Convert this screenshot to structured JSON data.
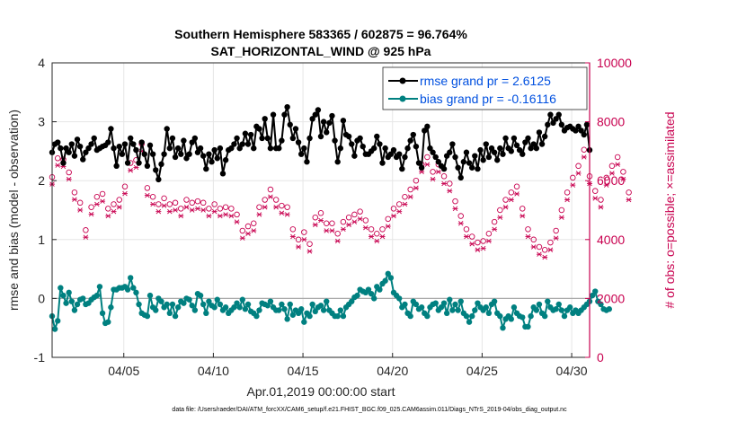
{
  "chart_data": {
    "type": "line",
    "title": "Southern Hemisphere 583365 / 602875 = 96.764%",
    "subtitle": "SAT_HORIZONTAL_WIND @ 925 hPa",
    "xlabel": "Apr.01,2019 00:00:00 start",
    "ylabel_left": "rmse and bias (model - observation)",
    "ylabel_right": "# of obs: o=possible; ×=assimilated",
    "x_ticks": [
      "04/05",
      "04/10",
      "04/15",
      "04/20",
      "04/25",
      "04/30"
    ],
    "x_tick_days": [
      5,
      10,
      15,
      20,
      25,
      30
    ],
    "xlim_days": [
      1,
      31
    ],
    "ylim_left": [
      -1,
      4
    ],
    "y_ticks_left": [
      "-1",
      "0",
      "1",
      "2",
      "3",
      "4"
    ],
    "ylim_right": [
      0,
      10000
    ],
    "y_ticks_right": [
      "0",
      "2000",
      "4000",
      "6000",
      "8000",
      "10000"
    ],
    "legend": [
      {
        "name": "rmse grand pr = 2.6125",
        "color": "#000000"
      },
      {
        "name": "bias grand pr = -0.16116",
        "color": "#008080"
      }
    ],
    "legend_position": "top-right",
    "footnote": "data file: /Users/raeder/DAI/ATM_forcXX/CAM6_setup/f.e21.FHIST_BGC.f09_025.CAM6assim.011/Diags_NTrS_2019-04/obs_diag_output.nc",
    "colors": {
      "rmse": "#000000",
      "bias": "#008080",
      "counts": "#c8004f",
      "zero_line": "#a9a9a9"
    },
    "rmse": [
      2.48,
      2.62,
      2.65,
      2.55,
      2.3,
      2.55,
      2.48,
      2.62,
      2.42,
      2.7,
      2.58,
      2.36,
      2.48,
      2.55,
      2.62,
      2.72,
      2.52,
      2.55,
      2.58,
      2.6,
      2.65,
      2.88,
      2.55,
      2.25,
      2.58,
      2.45,
      2.62,
      2.3,
      2.72,
      2.62,
      2.52,
      2.3,
      2.65,
      2.45,
      2.25,
      2.6,
      2.45,
      2.18,
      2.02,
      2.28,
      2.45,
      2.88,
      2.55,
      2.72,
      2.4,
      2.55,
      2.45,
      2.68,
      2.38,
      2.45,
      2.65,
      2.72,
      2.48,
      2.55,
      2.42,
      2.2,
      2.45,
      2.32,
      2.52,
      2.38,
      2.55,
      2.12,
      2.35,
      2.52,
      2.55,
      2.62,
      2.72,
      2.55,
      2.62,
      2.8,
      2.62,
      2.78,
      2.55,
      2.92,
      2.88,
      2.72,
      3.05,
      2.72,
      2.55,
      3.12,
      2.55,
      2.55,
      2.68,
      3.12,
      3.25,
      2.95,
      2.72,
      2.88,
      2.65,
      2.45,
      2.55,
      2.32,
      2.72,
      3.05,
      3.12,
      3.2,
      2.75,
      3.0,
      2.82,
      2.98,
      3.1,
      2.68,
      2.32,
      2.55,
      3.02,
      2.78,
      2.75,
      2.62,
      2.42,
      2.68,
      2.72,
      2.58,
      2.45,
      2.45,
      2.5,
      2.55,
      2.75,
      2.62,
      2.3,
      2.55,
      2.4,
      2.45,
      2.52,
      2.4,
      2.45,
      2.2,
      2.4,
      2.55,
      2.68,
      2.78,
      2.58,
      2.3,
      2.22,
      2.85,
      2.92,
      2.55,
      2.48,
      2.4,
      2.32,
      2.25,
      2.2,
      2.42,
      2.48,
      2.62,
      2.4,
      2.22,
      2.05,
      2.32,
      2.48,
      2.3,
      2.22,
      2.42,
      2.2,
      2.52,
      2.35,
      2.62,
      2.4,
      2.55,
      2.48,
      2.35,
      2.55,
      2.45,
      2.72,
      2.55,
      2.5,
      2.72,
      2.6,
      2.52,
      2.45,
      2.65,
      2.72,
      2.55,
      2.62,
      2.55,
      2.82,
      2.62,
      2.75,
      2.95,
      3.12,
      2.98,
      3.05,
      3.12,
      2.95,
      2.85,
      2.9,
      2.92,
      2.88,
      2.85,
      2.92,
      2.85,
      2.78,
      2.95,
      2.52
    ],
    "bias": [
      -0.3,
      -0.52,
      -0.38,
      0.18,
      0.05,
      -0.08,
      0.1,
      -0.05,
      -0.2,
      -0.1,
      -0.02,
      0.0,
      -0.1,
      -0.08,
      -0.02,
      0.02,
      0.05,
      0.2,
      -0.25,
      -0.42,
      -0.4,
      -0.15,
      0.15,
      0.15,
      0.18,
      0.18,
      0.2,
      0.15,
      0.35,
      0.18,
      0.1,
      -0.1,
      -0.25,
      -0.28,
      -0.3,
      0.05,
      -0.15,
      -0.2,
      0.0,
      -0.05,
      -0.15,
      -0.1,
      -0.25,
      -0.1,
      -0.3,
      -0.15,
      -0.05,
      -0.08,
      0.0,
      -0.02,
      -0.12,
      -0.2,
      0.08,
      0.05,
      -0.1,
      -0.25,
      -0.05,
      -0.12,
      -0.15,
      -0.02,
      -0.1,
      -0.2,
      -0.15,
      -0.25,
      -0.2,
      -0.15,
      -0.08,
      -0.15,
      -0.02,
      -0.18,
      -0.1,
      -0.22,
      -0.25,
      -0.3,
      -0.2,
      -0.08,
      -0.1,
      -0.12,
      -0.05,
      -0.15,
      -0.2,
      -0.2,
      -0.1,
      -0.18,
      -0.35,
      -0.1,
      -0.28,
      -0.2,
      -0.25,
      -0.18,
      -0.4,
      -0.25,
      -0.3,
      -0.1,
      -0.22,
      -0.15,
      -0.12,
      -0.2,
      -0.05,
      -0.2,
      -0.25,
      -0.3,
      -0.3,
      -0.2,
      -0.3,
      -0.15,
      -0.1,
      -0.05,
      0.02,
      0.05,
      0.15,
      0.12,
      0.1,
      0.15,
      0.08,
      0.0,
      0.2,
      0.15,
      0.25,
      0.3,
      0.42,
      0.35,
      0.1,
      0.05,
      0.0,
      -0.15,
      -0.1,
      -0.25,
      -0.3,
      -0.05,
      -0.1,
      -0.18,
      -0.15,
      -0.25,
      -0.3,
      -0.15,
      -0.1,
      -0.08,
      -0.2,
      -0.15,
      -0.08,
      -0.25,
      -0.02,
      -0.2,
      -0.1,
      -0.2,
      -0.05,
      -0.25,
      -0.3,
      -0.4,
      -0.3,
      -0.2,
      -0.08,
      -0.15,
      -0.2,
      -0.15,
      -0.25,
      -0.1,
      -0.05,
      -0.25,
      -0.3,
      -0.5,
      -0.35,
      -0.3,
      -0.35,
      -0.15,
      -0.25,
      -0.3,
      -0.32,
      -0.48,
      -0.48,
      -0.3,
      -0.15,
      -0.2,
      -0.1,
      -0.25,
      -0.3,
      -0.05,
      -0.15,
      -0.2,
      -0.18,
      -0.1,
      -0.2,
      -0.3,
      -0.2,
      -0.15,
      -0.25,
      -0.2,
      -0.25,
      -0.2,
      -0.15,
      -0.1,
      -0.05,
      0.05,
      0.12,
      -0.05,
      -0.1,
      -0.18,
      -0.2,
      -0.18
    ],
    "possible": [
      6120,
      6680,
      6760,
      6850,
      6720,
      6400,
      6280,
      5860,
      5600,
      5500,
      5250,
      4950,
      4320,
      4850,
      5100,
      5200,
      5450,
      5800,
      5550,
      5200,
      5050,
      5500,
      5200,
      5100,
      5350,
      5450,
      5800,
      6300,
      6600,
      6200,
      6700,
      6850,
      7250,
      7050,
      5750,
      5650,
      5450,
      5300,
      5200,
      5050,
      5400,
      5350,
      5200,
      5050,
      5250,
      5200,
      5050,
      5150,
      5350,
      5450,
      5250,
      5200,
      5300,
      5150,
      5250,
      5000,
      5050,
      5300,
      5200,
      5400,
      5050,
      5150,
      5100,
      5200,
      5050,
      4750,
      4850,
      4500,
      4300,
      4150,
      4450,
      4350,
      4550,
      4700,
      5100,
      5400,
      5350,
      5750,
      5700,
      5500,
      5350,
      5200,
      5150,
      5350,
      5100,
      4700,
      4350,
      4050,
      4000,
      3950,
      4250,
      4150,
      3850,
      4550,
      4750,
      5050,
      4900,
      4850,
      4550,
      4450,
      4550,
      4350,
      4200,
      4250,
      4600,
      4650,
      4750,
      4950,
      4850,
      5050,
      4950,
      4800,
      4650,
      4500,
      4350,
      4250,
      4200,
      4200,
      4350,
      4500,
      4700,
      4850,
      5050,
      5100,
      5200,
      5350,
      5450,
      5500,
      5700,
      5900,
      6000,
      6350,
      6550,
      6650,
      6800,
      6750,
      6300,
      6650,
      6550,
      6250,
      6150,
      6050,
      5900,
      5650,
      5300,
      4950,
      4800,
      4600,
      4350,
      4250,
      4100,
      4050,
      3900,
      3850,
      3950,
      4050,
      4200,
      4400,
      4600,
      4800,
      5000,
      5200,
      5350,
      5500,
      5600,
      5750,
      5800,
      5350,
      5050,
      4650,
      4350,
      4200,
      4000,
      3850,
      3750,
      3700,
      3650,
      3750,
      3900,
      4100,
      4300,
      4600,
      5000,
      5300,
      5600,
      5800,
      6100,
      6300,
      6500,
      6800,
      7050,
      6400,
      6150,
      5800,
      5650,
      5500,
      5350,
      5700,
      6100,
      6300,
      6500,
      6650,
      6800,
      7050,
      6300,
      5950,
      5600
    ],
    "assimilated": [
      5880,
      6400,
      6520,
      6600,
      6480,
      6150,
      6050,
      5620,
      5360,
      5250,
      5000,
      4700,
      4080,
      4620,
      4860,
      4950,
      5200,
      5550,
      5300,
      4960,
      4800,
      5260,
      4950,
      4860,
      5100,
      5200,
      5560,
      6050,
      6350,
      5950,
      6450,
      6600,
      7000,
      6800,
      5500,
      5400,
      5200,
      5050,
      4950,
      4800,
      5150,
      5100,
      4950,
      4800,
      5000,
      4950,
      4800,
      4900,
      5100,
      5200,
      5000,
      4950,
      5050,
      4900,
      5000,
      4750,
      4800,
      5050,
      4950,
      5150,
      4800,
      4900,
      4850,
      4950,
      4800,
      4500,
      4600,
      4250,
      4050,
      3900,
      4200,
      4100,
      4300,
      4450,
      4850,
      5150,
      5100,
      5500,
      5450,
      5250,
      5100,
      4950,
      4900,
      5100,
      4850,
      4450,
      4100,
      3800,
      3750,
      3700,
      4000,
      3900,
      3600,
      4300,
      4500,
      4800,
      4650,
      4600,
      4300,
      4200,
      4300,
      4100,
      3950,
      4000,
      4350,
      4400,
      4500,
      4700,
      4600,
      4800,
      4700,
      4550,
      4400,
      4250,
      4100,
      4000,
      3950,
      3950,
      4100,
      4250,
      4450,
      4600,
      4800,
      4850,
      4950,
      5100,
      5200,
      5250,
      5450,
      5650,
      5750,
      6100,
      6300,
      6400,
      6550,
      6500,
      6050,
      6400,
      6300,
      6000,
      5900,
      5800,
      5650,
      5400,
      5050,
      4700,
      4550,
      4350,
      4100,
      4000,
      3850,
      3800,
      3650,
      3600,
      3700,
      3800,
      3950,
      4150,
      4350,
      4550,
      4750,
      4950,
      5100,
      5250,
      5350,
      5500,
      5550,
      5100,
      4800,
      4400,
      4100,
      3950,
      3750,
      3600,
      3500,
      3450,
      3400,
      3500,
      3650,
      3850,
      4050,
      4350,
      4750,
      5050,
      5350,
      5550,
      5850,
      6050,
      6250,
      6550,
      6800,
      6150,
      5900,
      5550,
      5400,
      5250,
      5100,
      5450,
      5850,
      6050,
      6250,
      6400,
      6550,
      6800,
      6050,
      5700,
      5350
    ]
  }
}
